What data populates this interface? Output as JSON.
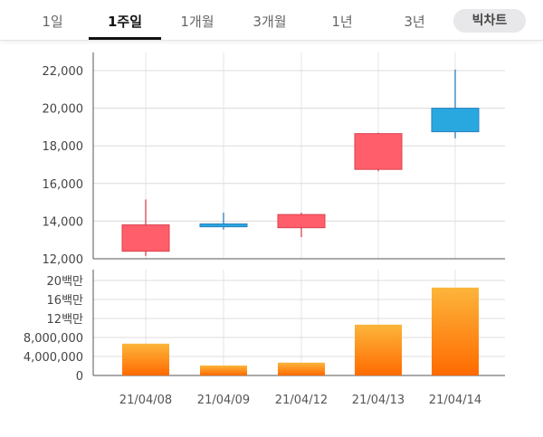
{
  "tabs": [
    "1일",
    "1주일",
    "1개월",
    "3개월",
    "1년",
    "3년"
  ],
  "active_tab": "1주일",
  "big_chart": "빅차트",
  "colors": {
    "up": "#ff5e6a",
    "down": "#29a8e0",
    "volume_top": "#fcb53b",
    "volume_bottom": "#ff6a00"
  },
  "chart_data": [
    {
      "type": "candlestick",
      "categories": [
        "21/04/08",
        "21/04/09",
        "21/04/12",
        "21/04/13",
        "21/04/14"
      ],
      "open": [
        12400,
        13850,
        13650,
        16750,
        20000
      ],
      "high": [
        15150,
        14450,
        14450,
        18700,
        22050
      ],
      "low": [
        12150,
        13550,
        13150,
        16650,
        18400
      ],
      "close": [
        13800,
        13700,
        14350,
        18650,
        18750
      ],
      "ylim": [
        12000,
        22800
      ],
      "yticks": [
        12000,
        14000,
        16000,
        18000,
        20000,
        22000
      ],
      "ytick_labels": [
        "12,000",
        "14,000",
        "16,000",
        "18,000",
        "20,000",
        "22,000"
      ],
      "grid": true
    },
    {
      "type": "bar",
      "categories": [
        "21/04/08",
        "21/04/09",
        "21/04/12",
        "21/04/13",
        "21/04/14"
      ],
      "values": [
        6700000,
        2100000,
        2700000,
        10700000,
        18500000
      ],
      "ylim": [
        0,
        22000000
      ],
      "yticks": [
        0,
        4000000,
        8000000,
        12000000,
        16000000,
        20000000
      ],
      "ytick_labels": [
        "0",
        "4,000,000",
        "8,000,000",
        "12백만",
        "16백만",
        "20백만"
      ],
      "grid": true
    }
  ]
}
